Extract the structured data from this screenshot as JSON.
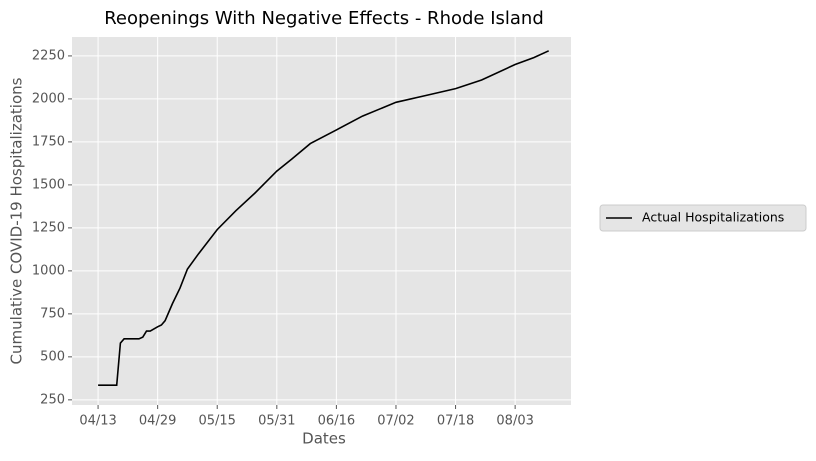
{
  "chart_data": {
    "type": "line",
    "title": "Reopenings With Negative Effects - Rhode Island",
    "x_label": "Dates",
    "y_label": "Cumulative COVID-19 Hospitalizations",
    "x": [
      "04/13",
      "04/18",
      "04/19",
      "04/20",
      "04/24",
      "04/25",
      "04/26",
      "04/27",
      "04/29",
      "04/30",
      "05/01",
      "05/03",
      "05/05",
      "05/07",
      "05/10",
      "05/15",
      "05/20",
      "05/25",
      "05/31",
      "06/04",
      "06/09",
      "06/16",
      "06/23",
      "07/02",
      "07/10",
      "07/18",
      "07/25",
      "08/03",
      "08/08",
      "08/12"
    ],
    "series": [
      {
        "name": "Actual Hospitalizations",
        "color": "#000000",
        "values": [
          335,
          335,
          580,
          605,
          605,
          615,
          650,
          650,
          675,
          685,
          710,
          810,
          900,
          1010,
          1100,
          1240,
          1350,
          1450,
          1580,
          1650,
          1740,
          1820,
          1900,
          1980,
          2020,
          2060,
          2110,
          2200,
          2240,
          2280
        ]
      }
    ],
    "xlim": [
      "04/06",
      "08/18"
    ],
    "xticks": [
      "04/13",
      "04/29",
      "05/15",
      "05/31",
      "06/16",
      "07/02",
      "07/18",
      "08/03"
    ],
    "ylim": [
      220,
      2360
    ],
    "yticks": [
      250,
      500,
      750,
      1000,
      1250,
      1500,
      1750,
      2000,
      2250
    ],
    "grid": true,
    "legend": "outside right"
  }
}
